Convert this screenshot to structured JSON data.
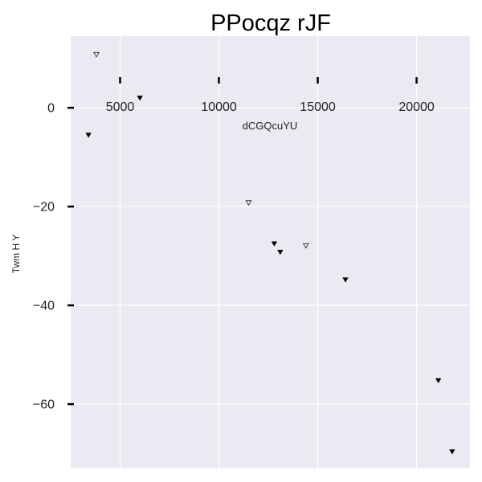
{
  "chart_data": {
    "type": "scatter",
    "title": "PPocqz rJF",
    "xlabel": "dCGQcuYU",
    "ylabel": "Twm H Y",
    "xlim": [
      2500,
      22700
    ],
    "ylim": [
      -73,
      14.5
    ],
    "xticks": [
      5000,
      10000,
      15000,
      20000
    ],
    "xtick_labels": [
      "5000",
      "10000",
      "15000",
      "20000"
    ],
    "yticks": [
      0,
      -20,
      -40,
      -60
    ],
    "ytick_labels": [
      "0",
      "−20",
      "−40",
      "−60"
    ],
    "grid": true,
    "x_axis_position": "inside-top",
    "series": [
      {
        "marker": "filled-down-triangle",
        "color": "#000000",
        "x": [
          3400,
          6000,
          12800,
          13100,
          16400,
          21100,
          21800
        ],
        "y": [
          -5.5,
          2,
          -27.5,
          -29.2,
          -34.8,
          -55.2,
          -69.6
        ]
      },
      {
        "marker": "hollow-down-triangle",
        "color": "#000000",
        "x": [
          3800,
          11500,
          14400
        ],
        "y": [
          10.8,
          -19.2,
          -27.9
        ]
      }
    ]
  },
  "colors": {
    "plot_background": "#eaeaf2",
    "grid": "#ffffff"
  }
}
